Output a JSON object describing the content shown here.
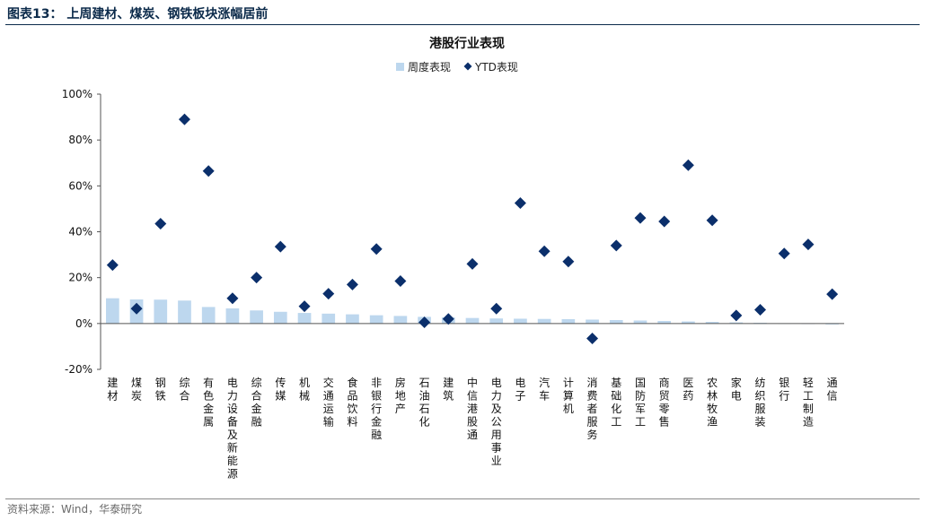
{
  "header": {
    "title": "图表13：  上周建材、煤炭、钢铁板块涨幅居前"
  },
  "footer": {
    "source": "资料来源：Wind，华泰研究"
  },
  "chart_data": {
    "type": "bar",
    "title": "港股行业表现",
    "legend_position": "top",
    "grid": false,
    "ylim": [
      -20,
      100
    ],
    "yticks": [
      "-20%",
      "0%",
      "20%",
      "40%",
      "60%",
      "80%",
      "100%"
    ],
    "categories": [
      "建材",
      "煤炭",
      "钢铁",
      "综合",
      "有色金属",
      "电力设备及新能源",
      "综合金融",
      "传媒",
      "机械",
      "交通运输",
      "食品饮料",
      "非银行金融",
      "房地产",
      "石油石化",
      "建筑",
      "中信港股通",
      "电力及公用事业",
      "电子",
      "汽车",
      "计算机",
      "消费者服务",
      "基础化工",
      "国防军工",
      "商贸零售",
      "医药",
      "农林牧渔",
      "家电",
      "纺织服装",
      "银行",
      "轻工制造",
      "通信"
    ],
    "series": [
      {
        "name": "周度表现",
        "kind": "bar",
        "color": "#bdd7ee",
        "values": [
          11.0,
          10.5,
          10.4,
          10.0,
          7.2,
          6.6,
          5.7,
          5.1,
          4.6,
          4.3,
          4.0,
          3.6,
          3.3,
          2.9,
          2.7,
          2.4,
          2.2,
          2.1,
          2.0,
          1.9,
          1.7,
          1.5,
          1.3,
          1.1,
          0.9,
          0.7,
          0.5,
          0.3,
          0.1,
          -0.2,
          -0.4
        ]
      },
      {
        "name": "YTD表现",
        "kind": "scatter",
        "marker": "diamond",
        "color": "#0b2f6b",
        "values": [
          25.5,
          6.5,
          43.5,
          89.0,
          66.5,
          11.0,
          20.0,
          33.5,
          7.5,
          13.0,
          17.0,
          32.5,
          18.5,
          0.5,
          2.0,
          26.0,
          6.5,
          52.5,
          31.5,
          27.0,
          -6.5,
          34.0,
          46.0,
          44.5,
          69.0,
          45.0,
          3.5,
          6.0,
          30.5,
          34.5,
          12.8
        ]
      }
    ]
  }
}
